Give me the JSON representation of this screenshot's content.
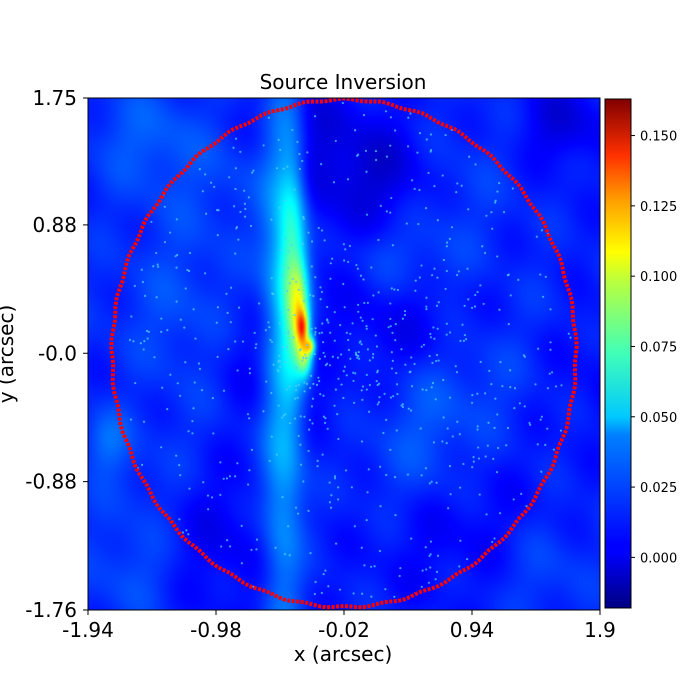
{
  "chart_data": {
    "type": "heatmap",
    "title": "Source Inversion",
    "xlabel": "x (arcsec)",
    "ylabel": "y (arcsec)",
    "xlim": [
      -1.94,
      1.9
    ],
    "ylim": [
      -1.76,
      1.75
    ],
    "x_ticks": [
      {
        "value": -1.94,
        "label": "-1.94"
      },
      {
        "value": -0.98,
        "label": "-0.98"
      },
      {
        "value": -0.02,
        "label": "-0.02"
      },
      {
        "value": 0.94,
        "label": "0.94"
      },
      {
        "value": 1.9,
        "label": "1.9"
      }
    ],
    "y_ticks": [
      {
        "value": 1.75,
        "label": "1.75"
      },
      {
        "value": 0.88,
        "label": "0.88"
      },
      {
        "value": 0.0,
        "label": "-0.0"
      },
      {
        "value": -0.88,
        "label": "-0.88"
      },
      {
        "value": -1.76,
        "label": "-1.76"
      }
    ],
    "colormap": "jet",
    "colorbar": {
      "range": [
        -0.018,
        0.163
      ],
      "ticks": [
        {
          "value": 0.0,
          "label": "0.000"
        },
        {
          "value": 0.025,
          "label": "0.025"
        },
        {
          "value": 0.05,
          "label": "0.050"
        },
        {
          "value": 0.075,
          "label": "0.075"
        },
        {
          "value": 0.1,
          "label": "0.100"
        },
        {
          "value": 0.125,
          "label": "0.125"
        },
        {
          "value": 0.15,
          "label": "0.150"
        }
      ]
    },
    "background_level": 0.01,
    "structures": [
      {
        "x": -0.48,
        "y": 0.05,
        "sx": 0.11,
        "sy": 1.5,
        "peak": 0.03
      },
      {
        "x": -0.4,
        "y": 0.55,
        "sx": 0.07,
        "sy": 0.55,
        "peak": 0.035
      },
      {
        "x": -0.35,
        "y": 0.28,
        "sx": 0.05,
        "sy": 0.22,
        "peak": 0.045
      },
      {
        "x": -0.33,
        "y": 0.18,
        "sx": 0.03,
        "sy": 0.08,
        "peak": 0.06
      },
      {
        "x": -0.31,
        "y": -0.02,
        "sx": 0.04,
        "sy": 0.1,
        "peak": 0.05
      },
      {
        "x": -0.27,
        "y": 0.05,
        "sx": 0.025,
        "sy": 0.04,
        "peak": 0.055
      },
      {
        "x": 0.55,
        "y": 0.1,
        "sx": 0.35,
        "sy": 0.3,
        "peak": -0.012
      },
      {
        "x": -0.78,
        "y": 0.0,
        "sx": 0.3,
        "sy": 0.3,
        "peak": -0.008
      },
      {
        "x": -1.5,
        "y": 1.5,
        "sx": 0.3,
        "sy": 0.25,
        "peak": 0.01
      },
      {
        "x": 1.62,
        "y": 1.58,
        "sx": 0.2,
        "sy": 0.2,
        "peak": -0.012
      },
      {
        "x": -1.8,
        "y": -0.6,
        "sx": 0.12,
        "sy": 0.15,
        "peak": 0.012
      },
      {
        "x": -1.6,
        "y": -1.5,
        "sx": 0.25,
        "sy": 0.25,
        "peak": 0.008
      },
      {
        "x": 1.5,
        "y": -1.5,
        "sx": 0.25,
        "sy": 0.25,
        "peak": 0.006
      }
    ],
    "source_pixel_centres": {
      "count": 520,
      "dense_regions": [
        {
          "x": -0.35,
          "y": 0.1,
          "sx": 0.15,
          "sy": 0.35,
          "count": 90
        },
        {
          "x": 0.1,
          "y": 0.05,
          "sx": 0.1,
          "sy": 0.15,
          "count": 40
        },
        {
          "x": 0.55,
          "y": 0.1,
          "sx": 0.3,
          "sy": 0.25,
          "count": 60
        }
      ]
    },
    "border": {
      "center_x": -0.02,
      "center_y": 0.0,
      "radius": 1.74,
      "color": "#ff0000"
    }
  }
}
